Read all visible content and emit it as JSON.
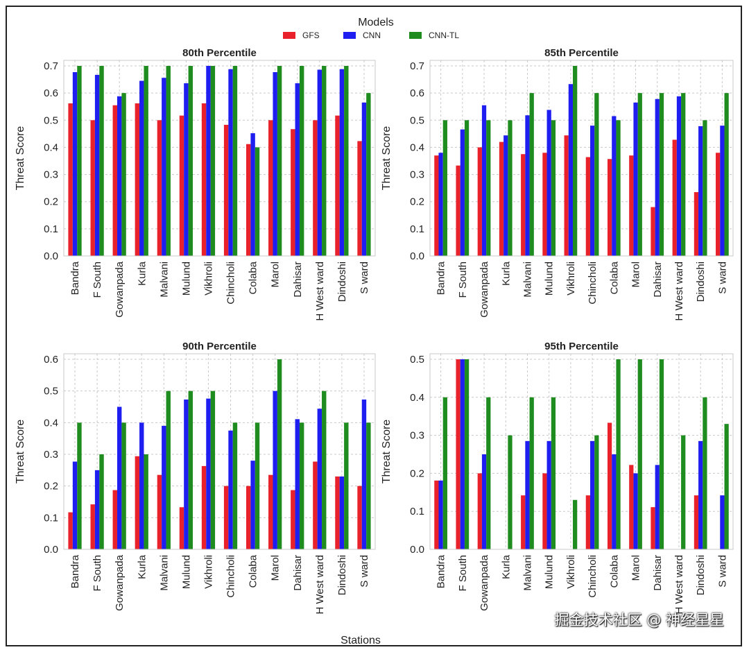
{
  "legend": {
    "title": "Models",
    "items": [
      {
        "name": "GFS",
        "color": "#e8212b"
      },
      {
        "name": "CNN",
        "color": "#1e1ef0"
      },
      {
        "name": "CNN-TL",
        "color": "#1f8c1f"
      }
    ]
  },
  "xlabel": "Stations",
  "watermark_text": "掘金技术社区 @ 神经星星",
  "chart_data": [
    {
      "type": "bar",
      "title": "80th Percentile",
      "ylabel": "Threat Score",
      "ylim": [
        0,
        0.7
      ],
      "yticks": [
        "0.0",
        "0.1",
        "0.2",
        "0.3",
        "0.4",
        "0.5",
        "0.6",
        "0.7"
      ],
      "categories": [
        "Bandra",
        "F South",
        "Gowanpada",
        "Kurla",
        "Malvani",
        "Mulund",
        "Vikhroli",
        "Chincholi",
        "Colaba",
        "Marol",
        "Dahisar",
        "H West ward",
        "Dindoshi",
        "S ward"
      ],
      "series": [
        {
          "name": "GFS",
          "values": [
            0.562,
            0.5,
            0.555,
            0.562,
            0.5,
            0.517,
            0.562,
            0.483,
            0.412,
            0.5,
            0.467,
            0.5,
            0.517,
            0.423
          ]
        },
        {
          "name": "CNN",
          "values": [
            0.677,
            0.667,
            0.588,
            0.645,
            0.656,
            0.636,
            0.7,
            0.688,
            0.452,
            0.677,
            0.636,
            0.686,
            0.688,
            0.565
          ]
        },
        {
          "name": "CNN-TL",
          "values": [
            0.7,
            0.7,
            0.6,
            0.7,
            0.7,
            0.7,
            0.7,
            0.7,
            0.4,
            0.7,
            0.7,
            0.7,
            0.7,
            0.6
          ]
        }
      ],
      "grid": true
    },
    {
      "type": "bar",
      "title": "85th Percentile",
      "ylabel": "Threat Score",
      "ylim": [
        0,
        0.7
      ],
      "yticks": [
        "0.0",
        "0.1",
        "0.2",
        "0.3",
        "0.4",
        "0.5",
        "0.6",
        "0.7"
      ],
      "categories": [
        "Bandra",
        "F South",
        "Gowanpada",
        "Kurla",
        "Malvani",
        "Mulund",
        "Vikhroli",
        "Chincholi",
        "Colaba",
        "Marol",
        "Dahisar",
        "H West ward",
        "Dindoshi",
        "S ward"
      ],
      "series": [
        {
          "name": "GFS",
          "values": [
            0.37,
            0.333,
            0.4,
            0.42,
            0.375,
            0.38,
            0.444,
            0.364,
            0.357,
            0.37,
            0.18,
            0.428,
            0.235,
            0.38
          ]
        },
        {
          "name": "CNN",
          "values": [
            0.38,
            0.466,
            0.555,
            0.444,
            0.518,
            0.538,
            0.633,
            0.48,
            0.515,
            0.565,
            0.578,
            0.588,
            0.478,
            0.48
          ]
        },
        {
          "name": "CNN-TL",
          "values": [
            0.5,
            0.5,
            0.5,
            0.5,
            0.6,
            0.5,
            0.7,
            0.6,
            0.5,
            0.6,
            0.6,
            0.6,
            0.5,
            0.6
          ]
        }
      ],
      "grid": true
    },
    {
      "type": "bar",
      "title": "90th Percentile",
      "ylabel": "Threat Score",
      "ylim": [
        0,
        0.6
      ],
      "yticks": [
        "0.0",
        "0.1",
        "0.2",
        "0.3",
        "0.4",
        "0.5",
        "0.6"
      ],
      "categories": [
        "Bandra",
        "F South",
        "Gowanpada",
        "Kurla",
        "Malvani",
        "Mulund",
        "Vikhroli",
        "Chincholi",
        "Colaba",
        "Marol",
        "Dahisar",
        "H West ward",
        "Dindoshi",
        "S ward"
      ],
      "series": [
        {
          "name": "GFS",
          "values": [
            0.117,
            0.142,
            0.187,
            0.294,
            0.235,
            0.133,
            0.263,
            0.2,
            0.2,
            0.235,
            0.187,
            0.277,
            0.23,
            0.2
          ]
        },
        {
          "name": "CNN",
          "values": [
            0.277,
            0.25,
            0.45,
            0.4,
            0.39,
            0.473,
            0.476,
            0.375,
            0.28,
            0.5,
            0.411,
            0.444,
            0.23,
            0.473
          ]
        },
        {
          "name": "CNN-TL",
          "values": [
            0.4,
            0.3,
            0.4,
            0.3,
            0.5,
            0.5,
            0.5,
            0.4,
            0.4,
            0.6,
            0.4,
            0.5,
            0.4,
            0.4
          ]
        }
      ],
      "grid": true
    },
    {
      "type": "bar",
      "title": "95th Percentile",
      "ylabel": "Threat Score",
      "ylim": [
        0,
        0.5
      ],
      "yticks": [
        "0.0",
        "0.1",
        "0.2",
        "0.3",
        "0.4",
        "0.5"
      ],
      "categories": [
        "Bandra",
        "F South",
        "Gowanpada",
        "Kurla",
        "Malvani",
        "Mulund",
        "Vikhroli",
        "Chincholi",
        "Colaba",
        "Marol",
        "Dahisar",
        "H West ward",
        "Dindoshi",
        "S ward"
      ],
      "series": [
        {
          "name": "GFS",
          "values": [
            0.181,
            0.5,
            0.2,
            0.0,
            0.142,
            0.2,
            0.0,
            0.142,
            0.333,
            0.222,
            0.111,
            0.0,
            0.142,
            0.0
          ]
        },
        {
          "name": "CNN",
          "values": [
            0.181,
            0.5,
            0.25,
            0.0,
            0.285,
            0.285,
            0.0,
            0.285,
            0.25,
            0.2,
            0.222,
            0.0,
            0.285,
            0.142
          ]
        },
        {
          "name": "CNN-TL",
          "values": [
            0.4,
            0.5,
            0.4,
            0.3,
            0.4,
            0.4,
            0.13,
            0.3,
            0.5,
            0.5,
            0.5,
            0.3,
            0.4,
            0.33
          ]
        }
      ],
      "grid": true
    }
  ]
}
